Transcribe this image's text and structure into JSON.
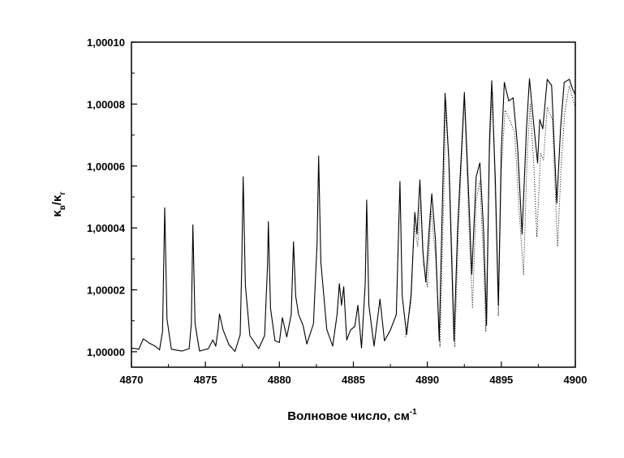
{
  "chart_data": {
    "type": "line",
    "title": "",
    "xlabel": "Волновое число, см",
    "xlabel_sup": "-1",
    "ylabel_main": "κ",
    "ylabel_sub1": "в",
    "ylabel_slash": "/κ",
    "ylabel_sub2": "г",
    "xlim": [
      4870,
      4900
    ],
    "ylim": [
      0.999995,
      1.0001
    ],
    "x_ticks": [
      4870,
      4875,
      4880,
      4885,
      4890,
      4895,
      4900
    ],
    "x_tick_labels": [
      "4870",
      "4875",
      "4880",
      "4885",
      "4890",
      "4895",
      "4900"
    ],
    "y_ticks": [
      1.0,
      1.00002,
      1.00004,
      1.00006,
      1.00008,
      1.0001
    ],
    "y_tick_labels": [
      "1,00000",
      "1,00002",
      "1,00004",
      "1,00006",
      "1,00008",
      "1,00010"
    ],
    "grid": false,
    "legend": "none",
    "series": [
      {
        "style": "solid",
        "color": "#000000",
        "points": [
          [
            4870.0,
            1.0000012
          ],
          [
            4870.5,
            1.0000008
          ],
          [
            4870.8,
            1.0000042
          ],
          [
            4871.2,
            1.0000028
          ],
          [
            4871.6,
            1.0000018
          ],
          [
            4871.9,
            1.0000006
          ],
          [
            4872.1,
            1.0000065
          ],
          [
            4872.25,
            1.0000465
          ],
          [
            4872.4,
            1.0000105
          ],
          [
            4872.7,
            1.0000008
          ],
          [
            4873.4,
            1.0000002
          ],
          [
            4873.9,
            1.000001
          ],
          [
            4874.05,
            1.000009
          ],
          [
            4874.15,
            1.000041
          ],
          [
            4874.3,
            1.000009
          ],
          [
            4874.6,
            1.0000002
          ],
          [
            4875.2,
            1.000001
          ],
          [
            4875.5,
            1.0000038
          ],
          [
            4875.7,
            1.0000018
          ],
          [
            4875.85,
            1.000007
          ],
          [
            4875.95,
            1.0000122
          ],
          [
            4876.2,
            1.000007
          ],
          [
            4876.6,
            1.0000022
          ],
          [
            4877.0,
            1.0000001
          ],
          [
            4877.35,
            1.0000055
          ],
          [
            4877.45,
            1.0000262
          ],
          [
            4877.55,
            1.0000565
          ],
          [
            4877.7,
            1.0000215
          ],
          [
            4878.0,
            1.0000052
          ],
          [
            4878.6,
            1.000001
          ],
          [
            4879.0,
            1.0000052
          ],
          [
            4879.2,
            1.000028
          ],
          [
            4879.25,
            1.000042
          ],
          [
            4879.4,
            1.000014
          ],
          [
            4879.7,
            1.0000035
          ],
          [
            4880.0,
            1.000003
          ],
          [
            4880.2,
            1.000011
          ],
          [
            4880.5,
            1.0000048
          ],
          [
            4880.8,
            1.000012
          ],
          [
            4880.95,
            1.0000355
          ],
          [
            4881.1,
            1.000018
          ],
          [
            4881.3,
            1.000012
          ],
          [
            4881.6,
            1.0000085
          ],
          [
            4881.85,
            1.0000025
          ],
          [
            4882.3,
            1.000009
          ],
          [
            4882.55,
            1.0000355
          ],
          [
            4882.65,
            1.0000632
          ],
          [
            4882.8,
            1.000029
          ],
          [
            4883.2,
            1.0000072
          ],
          [
            4883.6,
            1.0000018
          ],
          [
            4883.9,
            1.000012
          ],
          [
            4884.05,
            1.000022
          ],
          [
            4884.2,
            1.000015
          ],
          [
            4884.35,
            1.000021
          ],
          [
            4884.55,
            1.0000038
          ],
          [
            4884.8,
            1.000007
          ],
          [
            4885.1,
            1.0000082
          ],
          [
            4885.3,
            1.000015
          ],
          [
            4885.55,
            1.0000012
          ],
          [
            4885.8,
            1.000022
          ],
          [
            4885.9,
            1.000049
          ],
          [
            4886.05,
            1.000015
          ],
          [
            4886.4,
            1.0000018
          ],
          [
            4886.8,
            1.000017
          ],
          [
            4887.1,
            1.0000035
          ],
          [
            4887.5,
            1.000007
          ],
          [
            4887.9,
            1.000012
          ],
          [
            4888.15,
            1.000055
          ],
          [
            4888.3,
            1.000018
          ],
          [
            4888.6,
            1.0000055
          ],
          [
            4888.9,
            1.0000185
          ],
          [
            4889.15,
            1.000045
          ],
          [
            4889.3,
            1.000038
          ],
          [
            4889.5,
            1.0000555
          ],
          [
            4889.7,
            1.000032
          ],
          [
            4889.9,
            1.0000225
          ],
          [
            4890.1,
            1.000038
          ],
          [
            4890.3,
            1.000051
          ],
          [
            4890.55,
            1.000036
          ],
          [
            4890.8,
            1.0000035
          ],
          [
            4891.0,
            1.000045
          ],
          [
            4891.2,
            1.0000835
          ],
          [
            4891.45,
            1.000062
          ],
          [
            4891.8,
            1.0000035
          ],
          [
            4892.05,
            1.00004
          ],
          [
            4892.5,
            1.0000838
          ],
          [
            4892.8,
            1.00005
          ],
          [
            4893.0,
            1.000025
          ],
          [
            4893.3,
            1.0000565
          ],
          [
            4893.55,
            1.000061
          ],
          [
            4893.8,
            1.000039
          ],
          [
            4894.0,
            1.0000085
          ],
          [
            4894.2,
            1.000068
          ],
          [
            4894.35,
            1.0000875
          ],
          [
            4894.6,
            1.000055
          ],
          [
            4894.8,
            1.000015
          ],
          [
            4895.0,
            1.000065
          ],
          [
            4895.2,
            1.000087
          ],
          [
            4895.5,
            1.000081
          ],
          [
            4895.8,
            1.000082
          ],
          [
            4896.1,
            1.000066
          ],
          [
            4896.4,
            1.000038
          ],
          [
            4896.7,
            1.000072
          ],
          [
            4896.9,
            1.0000882
          ],
          [
            4897.2,
            1.000073
          ],
          [
            4897.45,
            1.000061
          ],
          [
            4897.6,
            1.000075
          ],
          [
            4897.8,
            1.000072
          ],
          [
            4898.1,
            1.000088
          ],
          [
            4898.4,
            1.000086
          ],
          [
            4898.75,
            1.000048
          ],
          [
            4899.0,
            1.000072
          ],
          [
            4899.25,
            1.000087
          ],
          [
            4899.6,
            1.000088
          ],
          [
            4899.8,
            1.000085
          ],
          [
            4900.0,
            1.000083
          ]
        ]
      },
      {
        "style": "dotted",
        "color": "#000000",
        "points": [
          [
            4888.5,
            1.0000048
          ],
          [
            4888.9,
            1.000016
          ],
          [
            4889.1,
            1.000041
          ],
          [
            4889.35,
            1.000034
          ],
          [
            4889.55,
            1.000049
          ],
          [
            4889.75,
            1.000028
          ],
          [
            4890.0,
            1.000021
          ],
          [
            4890.25,
            1.000046
          ],
          [
            4890.55,
            1.000031
          ],
          [
            4890.85,
            1.0000015
          ],
          [
            4891.1,
            1.000048
          ],
          [
            4891.25,
            1.000081
          ],
          [
            4891.5,
            1.000058
          ],
          [
            4891.85,
            1.0000015
          ],
          [
            4892.1,
            1.00004
          ],
          [
            4892.5,
            1.000082
          ],
          [
            4892.85,
            1.000036
          ],
          [
            4893.05,
            1.000014
          ],
          [
            4893.3,
            1.000049
          ],
          [
            4893.55,
            1.000055
          ],
          [
            4893.8,
            1.000029
          ],
          [
            4893.95,
            1.0000065
          ],
          [
            4894.2,
            1.000064
          ],
          [
            4894.4,
            1.000084
          ],
          [
            4894.65,
            1.00004
          ],
          [
            4894.8,
            1.0000115
          ],
          [
            4895.0,
            1.000058
          ],
          [
            4895.25,
            1.000078
          ],
          [
            4895.55,
            1.000075
          ],
          [
            4895.9,
            1.000071
          ],
          [
            4896.2,
            1.000046
          ],
          [
            4896.5,
            1.000025
          ],
          [
            4896.75,
            1.000064
          ],
          [
            4896.95,
            1.00008
          ],
          [
            4897.2,
            1.00006
          ],
          [
            4897.4,
            1.000037
          ],
          [
            4897.65,
            1.000064
          ],
          [
            4897.85,
            1.000062
          ],
          [
            4898.1,
            1.000079
          ],
          [
            4898.45,
            1.000075
          ],
          [
            4898.8,
            1.000034
          ],
          [
            4899.05,
            1.000061
          ],
          [
            4899.3,
            1.000078
          ],
          [
            4899.6,
            1.000086
          ],
          [
            4899.85,
            1.000081
          ],
          [
            4900.0,
            1.000079
          ]
        ]
      }
    ]
  }
}
